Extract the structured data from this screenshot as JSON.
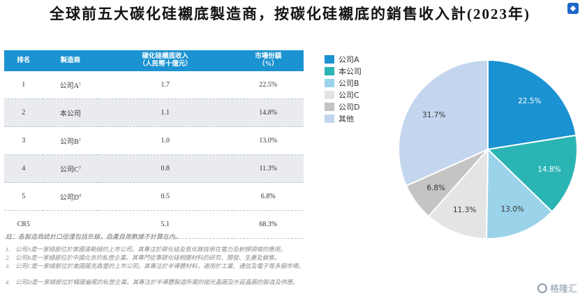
{
  "title": "全球前五大碳化硅襯底製造商，按碳化硅襯底的銷售收入計(2023年)",
  "table": {
    "headers": [
      "排名",
      "製造商",
      "碳化硅襯底收入\n（人民幣十億元）",
      "市場份額\n（%）"
    ],
    "rows": [
      {
        "rank": "1",
        "maker": "公司A",
        "sup": "1",
        "revenue": "1.7",
        "share": "22.5%"
      },
      {
        "rank": "2",
        "maker": "本公司",
        "sup": "",
        "revenue": "1.1",
        "share": "14.8%"
      },
      {
        "rank": "3",
        "maker": "公司B",
        "sup": "2",
        "revenue": "1.0",
        "share": "13.0%"
      },
      {
        "rank": "4",
        "maker": "公司C",
        "sup": "3",
        "revenue": "0.8",
        "share": "11.3%"
      },
      {
        "rank": "5",
        "maker": "公司D",
        "sup": "4",
        "revenue": "0.5",
        "share": "6.8%"
      },
      {
        "rank": "CR5",
        "maker": "",
        "sup": "",
        "revenue": "5.1",
        "share": "68.3%"
      }
    ]
  },
  "note": "註：各製造商統計口徑僅包括外銷，自產自用數據不計算在內。",
  "footnotes": [
    {
      "num": "1.",
      "text": "公司A是一家總部位於美國達勒姆的上市公司。其專注於碳化硅及氮化鎵技術在電力及射頻領域的應用。"
    },
    {
      "num": "2.",
      "text": "公司B是一家總部位於中國北京的私營企業。其專門從事碳化硅相關材料的研究、開發、生產及銷售。"
    },
    {
      "num": "3.",
      "text": "公司C是一家總部位於美國薩克森堡的上市公司。其專注於半導體材料，適用於工業、通信及電子等多個市場。"
    },
    {
      "num": "4.",
      "text": "公司D是一家總部位於韓國龜尾的私營企業。其專注於半導體製造所需的拋光晶圓及外延晶圓的製造及供應。"
    }
  ],
  "colors": {
    "header_blue": "#1b92d1",
    "series": [
      "#1b92d1",
      "#2bb4b4",
      "#9bd3ea",
      "#e4e4e4",
      "#c4c4c4",
      "#c3d6ee"
    ]
  },
  "chart_data": {
    "type": "pie",
    "labels": [
      "公司A",
      "本公司",
      "公司B",
      "公司C",
      "公司D",
      "其他"
    ],
    "values": [
      22.5,
      14.8,
      13.0,
      11.3,
      6.8,
      31.7
    ],
    "value_labels": [
      "22.5%",
      "14.8%",
      "13.0%",
      "11.3%",
      "6.8%",
      "31.7%"
    ],
    "legend_position": "top-left"
  },
  "watermark": "格隆汇",
  "corner_icon": "logo-badge"
}
